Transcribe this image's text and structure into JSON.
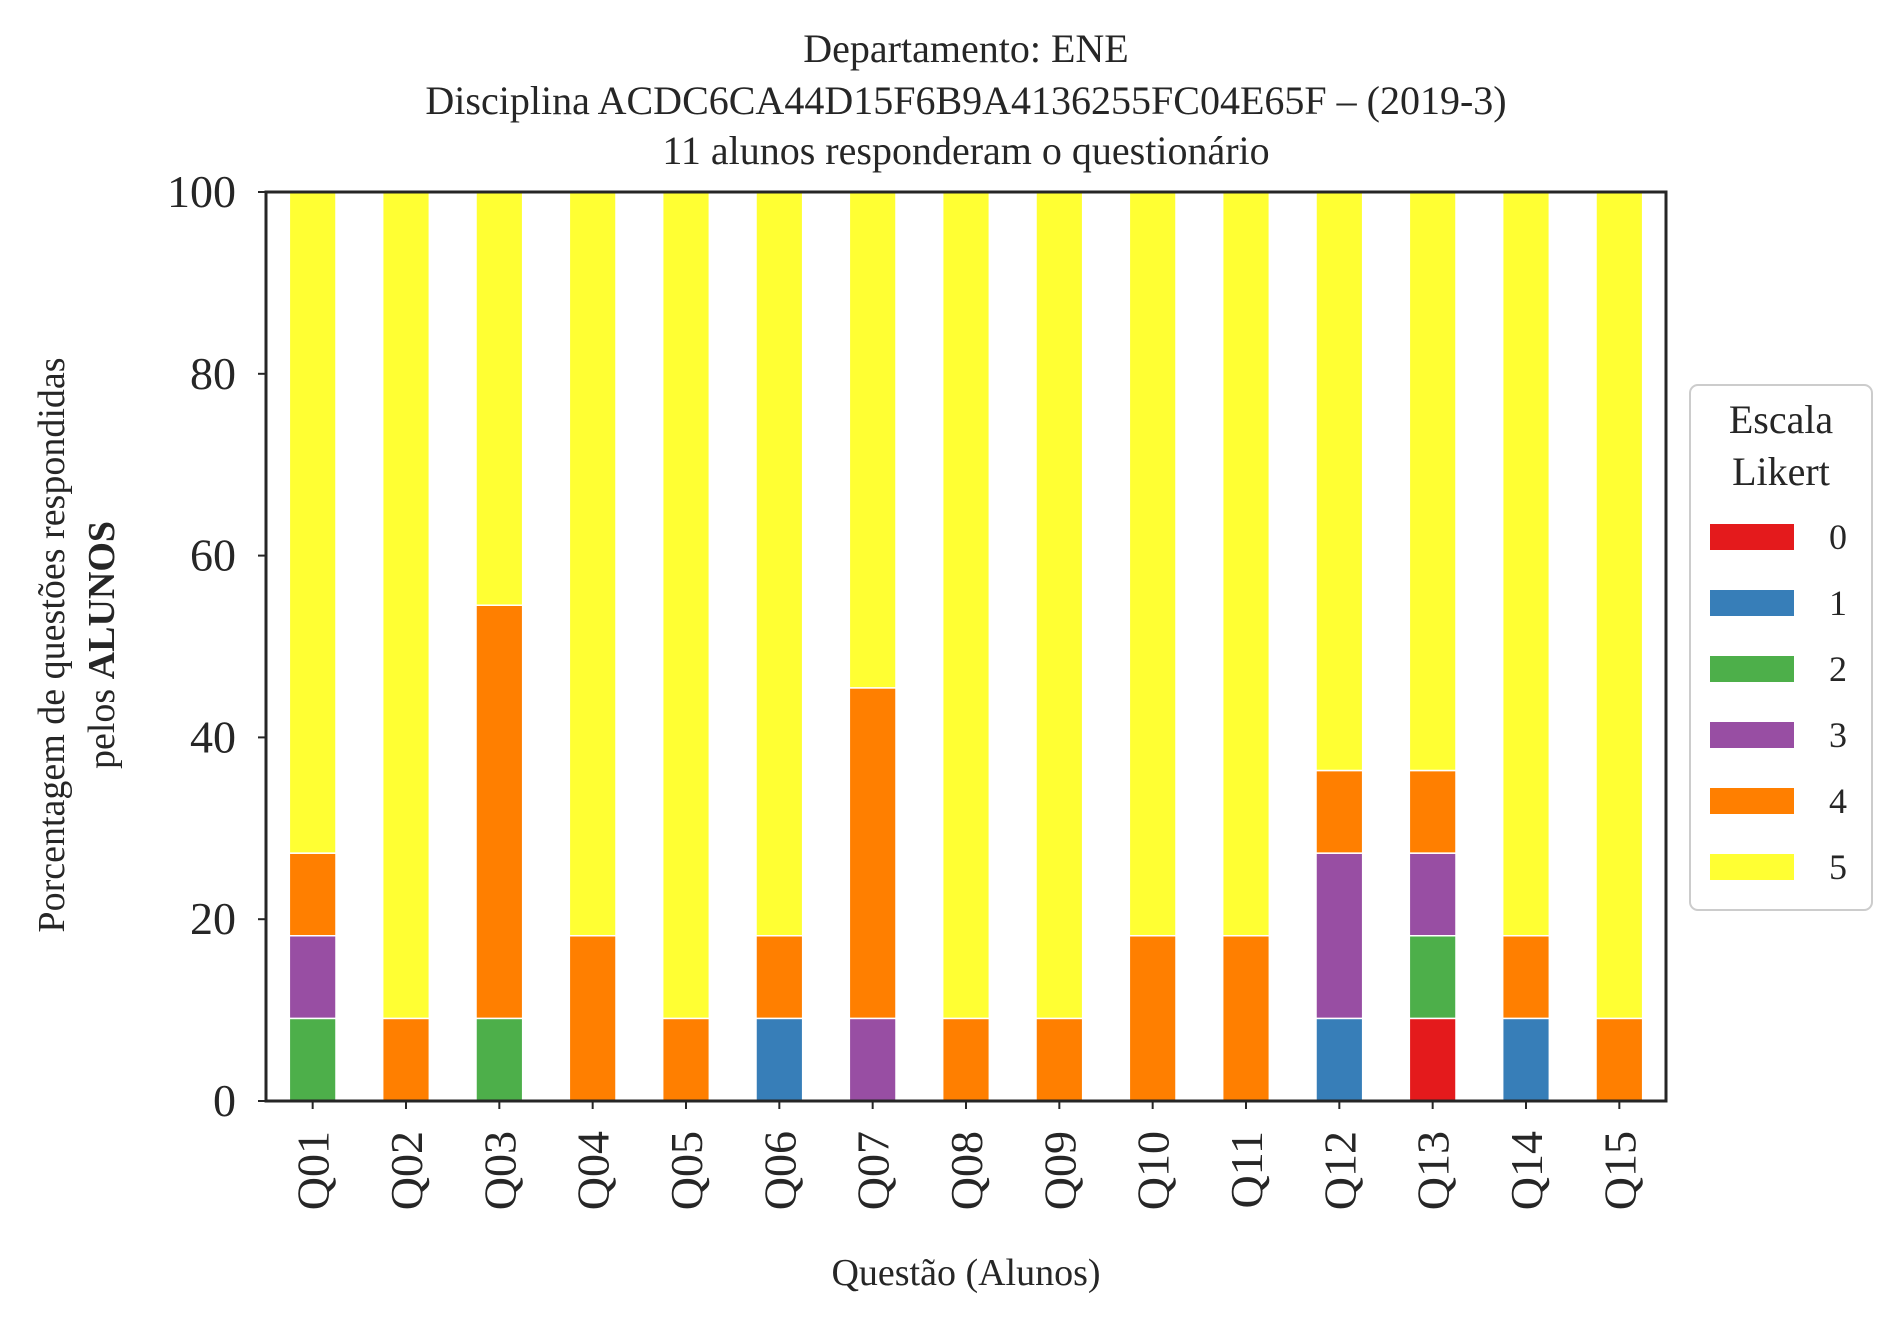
{
  "chart_data": {
    "type": "bar",
    "stacked": true,
    "title_lines": [
      "Departamento: ENE",
      "Disciplina ACDC6CA44D15F6B9A4136255FC04E65F – (2019-3)",
      "11 alunos responderam o questionário"
    ],
    "xlabel": "Questão (Alunos)",
    "ylabel_line1": "Porcentagem de questões respondidas",
    "ylabel_line2_prefix": "pelos ",
    "ylabel_line2_bold": "ALUNOS",
    "ylim": [
      0,
      100
    ],
    "yticks": [
      "0",
      "20",
      "40",
      "60",
      "80",
      "100"
    ],
    "categories": [
      "Q01",
      "Q02",
      "Q03",
      "Q04",
      "Q05",
      "Q06",
      "Q07",
      "Q08",
      "Q09",
      "Q10",
      "Q11",
      "Q12",
      "Q13",
      "Q14",
      "Q15"
    ],
    "legend": {
      "title_line1": "Escala",
      "title_line2": "Likert",
      "placement": "right"
    },
    "series": [
      {
        "name": "0",
        "color": "#e41a1c",
        "values": [
          0,
          0,
          0,
          0,
          0,
          0,
          0,
          0,
          0,
          0,
          0,
          0,
          9.09,
          0,
          0
        ]
      },
      {
        "name": "1",
        "color": "#377eb8",
        "values": [
          0,
          0,
          0,
          0,
          0,
          9.09,
          0,
          0,
          0,
          0,
          0,
          9.09,
          0,
          9.09,
          0
        ]
      },
      {
        "name": "2",
        "color": "#4daf4a",
        "values": [
          9.09,
          0,
          9.09,
          0,
          0,
          0,
          0,
          0,
          0,
          0,
          0,
          0,
          9.09,
          0,
          0
        ]
      },
      {
        "name": "3",
        "color": "#984ea3",
        "values": [
          9.09,
          0,
          0,
          0,
          0,
          0,
          9.09,
          0,
          0,
          0,
          0,
          18.18,
          9.09,
          0,
          0
        ]
      },
      {
        "name": "4",
        "color": "#ff7f00",
        "values": [
          9.09,
          9.09,
          45.45,
          18.18,
          9.09,
          9.09,
          36.36,
          9.09,
          9.09,
          18.18,
          18.18,
          9.09,
          9.09,
          9.09,
          9.09
        ]
      },
      {
        "name": "5",
        "color": "#ffff33",
        "values": [
          72.73,
          90.91,
          45.45,
          81.82,
          90.91,
          81.82,
          54.55,
          90.91,
          90.91,
          81.82,
          81.82,
          63.64,
          63.64,
          81.82,
          90.91
        ]
      }
    ]
  }
}
